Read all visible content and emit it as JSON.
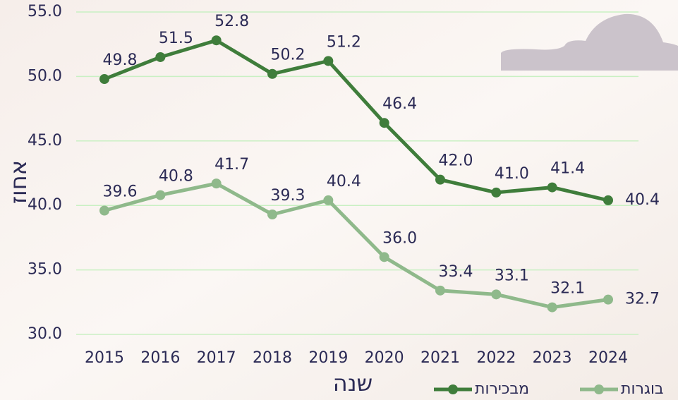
{
  "chart_data": {
    "type": "line",
    "x_label": "שנה",
    "y_label": "אחוז",
    "categories": [
      "2015",
      "2016",
      "2017",
      "2018",
      "2019",
      "2020",
      "2021",
      "2022",
      "2023",
      "2024"
    ],
    "series": [
      {
        "name": "מבכירות",
        "color": "#3f7d3b",
        "values": [
          49.8,
          51.5,
          52.8,
          50.2,
          51.2,
          46.4,
          42.0,
          41.0,
          41.4,
          40.4
        ],
        "value_labels": [
          "49.8",
          "51.5",
          "52.8",
          "50.2",
          "51.2",
          "46.4",
          "42.0",
          "41.0",
          "41.4",
          "40.4"
        ]
      },
      {
        "name": "בוגרות",
        "color": "#8fb98b",
        "values": [
          39.6,
          40.8,
          41.7,
          39.3,
          40.4,
          36.0,
          33.4,
          33.1,
          32.1,
          32.7
        ],
        "value_labels": [
          "39.6",
          "40.8",
          "41.7",
          "39.3",
          "40.4",
          "36.0",
          "33.4",
          "33.1",
          "32.1",
          "32.7"
        ]
      }
    ],
    "ylim": [
      30,
      55
    ],
    "yticks": [
      {
        "value": 30,
        "label": "30.0"
      },
      {
        "value": 35,
        "label": "35.0"
      },
      {
        "value": 40,
        "label": "40.0"
      },
      {
        "value": 45,
        "label": "45.0"
      },
      {
        "value": 50,
        "label": "50.0"
      },
      {
        "value": 55,
        "label": "55.0"
      }
    ],
    "grid": true,
    "legend": "bottom-right"
  }
}
